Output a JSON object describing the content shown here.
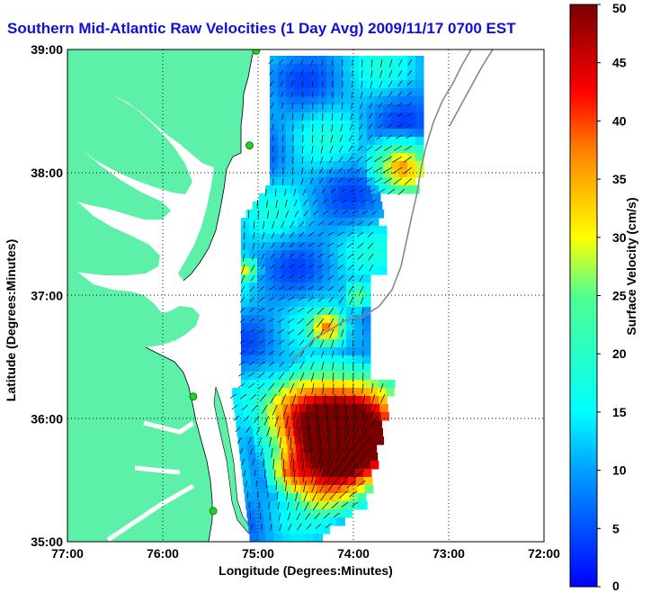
{
  "title": "Southern Mid-Atlantic Raw Velocities (1 Day Avg) 2009/11/17 0700 EST",
  "axes": {
    "xlabel": "Longitude (Degrees:Minutes)",
    "ylabel": "Latitude (Degrees:Minutes)",
    "xticks": [
      "77:00",
      "76:00",
      "75:00",
      "74:00",
      "73:00",
      "72:00"
    ],
    "yticks": [
      "39:00",
      "38:00",
      "37:00",
      "36:00",
      "35:00"
    ],
    "lon_range": [
      -77,
      -72
    ],
    "lat_range": [
      35,
      39
    ],
    "grid": "dotted"
  },
  "colorbar": {
    "label": "Surface Velocity (cm/s)",
    "ticks": [
      "50",
      "45",
      "40",
      "35",
      "30",
      "25",
      "20",
      "15",
      "10",
      "5",
      "0"
    ],
    "range": [
      0,
      50
    ],
    "colormap": "jet"
  },
  "colors": {
    "land": "#5cf0a8",
    "title": "#1010d8",
    "station": "#22d022"
  },
  "stations": [
    {
      "lon": -75.02,
      "lat": 38.99
    },
    {
      "lon": -75.09,
      "lat": 38.22
    },
    {
      "lon": -75.68,
      "lat": 36.18
    },
    {
      "lon": -75.47,
      "lat": 35.25
    }
  ]
}
